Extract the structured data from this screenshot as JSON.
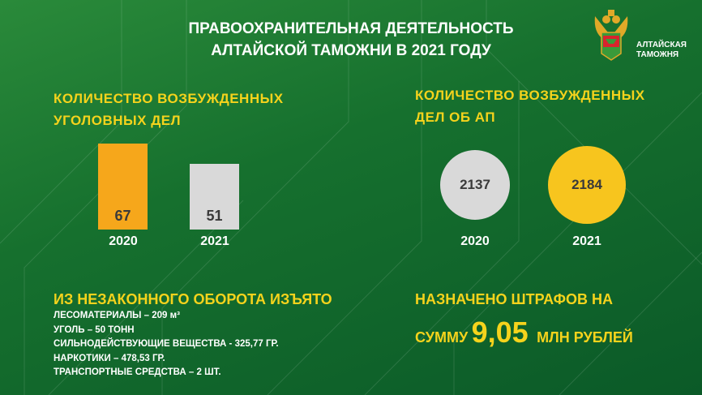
{
  "header": {
    "title_line1": "ПРАВООХРАНИТЕЛЬНАЯ ДЕЯТЕЛЬНОСТЬ",
    "title_line2": "АЛТАЙСКОЙ ТАМОЖНИ В 2021 ГОДУ"
  },
  "logo": {
    "line1": "АЛТАЙСКАЯ",
    "line2": "ТАМОЖНЯ"
  },
  "colors": {
    "background": "#16702e",
    "accent_yellow": "#f5d31c",
    "orange": "#f6a71b",
    "gray": "#d9d9d9",
    "circle_yellow": "#f7c51e"
  },
  "chart_data": [
    {
      "type": "bar",
      "title_line1": "КОЛИЧЕСТВО ВОЗБУЖДЕННЫХ",
      "title_line2": "УГОЛОВНЫХ ДЕЛ",
      "categories": [
        "2020",
        "2021"
      ],
      "values": [
        67,
        51
      ],
      "value_labels": [
        "67",
        "51"
      ],
      "colors": [
        "#f6a71b",
        "#d9d9d9"
      ]
    },
    {
      "type": "bubble",
      "title_line1": "КОЛИЧЕСТВО ВОЗБУЖДЕННЫХ",
      "title_line2": "ДЕЛ ОБ АП",
      "categories": [
        "2020",
        "2021"
      ],
      "values": [
        2137,
        2184
      ],
      "value_labels": [
        "2137",
        "2184"
      ],
      "colors": [
        "#d9d9d9",
        "#f7c51e"
      ]
    }
  ],
  "seized": {
    "title": "ИЗ НЕЗАКОННОГО ОБОРОТА  ИЗЪЯТО",
    "items": [
      "ЛЕСОМАТЕРИАЛЫ – 209 м³",
      "УГОЛЬ – 50 ТОНН",
      "СИЛЬНОДЕЙСТВУЮЩИЕ ВЕЩЕСТВА - 325,77  ГР.",
      "НАРКОТИКИ – 478,53 ГР.",
      "ТРАНСПОРТНЫЕ СРЕДСТВА – 2 ШТ."
    ]
  },
  "fines": {
    "line1": "НАЗНАЧЕНО ШТРАФОВ НА",
    "prefix": "СУММУ",
    "amount": "9,05",
    "suffix": "МЛН РУБЛЕЙ"
  }
}
